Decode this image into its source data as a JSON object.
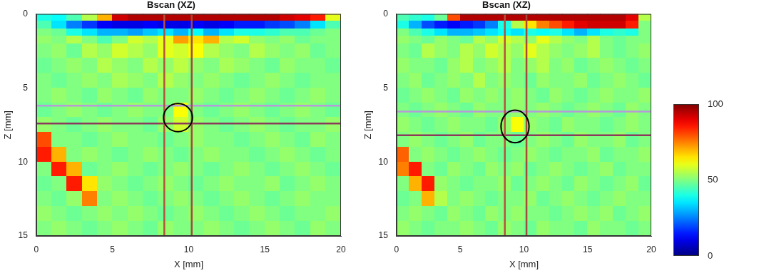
{
  "chart_data": [
    {
      "type": "heatmap",
      "title": "Bscan (XZ)",
      "x_label": "X [mm]",
      "y_label": "Z [mm]",
      "xlim": [
        0,
        20
      ],
      "ylim": [
        15,
        0
      ],
      "xticks": [
        0,
        5,
        10,
        15,
        20
      ],
      "yticks": [
        0,
        5,
        10,
        15
      ],
      "x_edges": [
        0,
        1,
        2,
        3,
        4,
        5,
        6,
        7,
        8,
        9,
        10,
        11,
        12,
        13,
        14,
        15,
        16,
        17,
        18,
        19,
        20
      ],
      "z_edges": [
        0,
        0.5,
        1,
        1.5,
        2,
        3,
        4,
        5,
        6,
        7,
        8,
        9,
        10,
        11,
        12,
        13,
        14,
        15
      ],
      "cells": [
        [
          40,
          38,
          45,
          55,
          70,
          92,
          95,
          95,
          95,
          95,
          95,
          95,
          95,
          95,
          95,
          95,
          92,
          90,
          85,
          60
        ],
        [
          45,
          35,
          25,
          18,
          12,
          10,
          10,
          12,
          10,
          10,
          12,
          10,
          12,
          15,
          15,
          18,
          20,
          25,
          35,
          45
        ],
        [
          50,
          48,
          40,
          35,
          30,
          30,
          28,
          32,
          35,
          30,
          38,
          30,
          35,
          40,
          40,
          42,
          45,
          45,
          48,
          50
        ],
        [
          52,
          50,
          55,
          50,
          45,
          50,
          58,
          55,
          60,
          72,
          65,
          70,
          55,
          58,
          52,
          50,
          52,
          48,
          50,
          50
        ],
        [
          50,
          52,
          48,
          55,
          52,
          58,
          55,
          52,
          60,
          58,
          62,
          55,
          52,
          50,
          55,
          52,
          50,
          52,
          48,
          50
        ],
        [
          48,
          50,
          52,
          50,
          55,
          52,
          50,
          55,
          52,
          56,
          52,
          50,
          54,
          52,
          50,
          48,
          52,
          50,
          50,
          48
        ],
        [
          50,
          48,
          50,
          52,
          50,
          54,
          52,
          50,
          55,
          52,
          50,
          52,
          50,
          48,
          50,
          52,
          50,
          48,
          50,
          50
        ],
        [
          50,
          52,
          50,
          48,
          52,
          50,
          48,
          52,
          50,
          50,
          52,
          50,
          48,
          50,
          52,
          50,
          48,
          50,
          52,
          50
        ],
        [
          48,
          50,
          52,
          50,
          48,
          50,
          52,
          50,
          50,
          62,
          50,
          48,
          50,
          52,
          50,
          48,
          50,
          52,
          50,
          48
        ],
        [
          52,
          50,
          48,
          50,
          52,
          50,
          50,
          48,
          52,
          58,
          52,
          50,
          48,
          50,
          52,
          50,
          48,
          50,
          50,
          52
        ],
        [
          80,
          50,
          50,
          48,
          50,
          52,
          50,
          50,
          48,
          50,
          52,
          50,
          50,
          48,
          50,
          52,
          50,
          48,
          52,
          50
        ],
        [
          85,
          70,
          50,
          52,
          50,
          48,
          50,
          52,
          50,
          48,
          50,
          52,
          50,
          50,
          48,
          50,
          52,
          50,
          48,
          50
        ],
        [
          50,
          85,
          70,
          48,
          50,
          52,
          50,
          48,
          50,
          52,
          50,
          48,
          50,
          52,
          50,
          48,
          50,
          52,
          50,
          48
        ],
        [
          48,
          50,
          85,
          65,
          52,
          50,
          48,
          50,
          52,
          50,
          48,
          50,
          52,
          50,
          50,
          52,
          48,
          50,
          52,
          50
        ],
        [
          50,
          48,
          52,
          75,
          50,
          52,
          50,
          48,
          50,
          52,
          50,
          48,
          50,
          52,
          50,
          48,
          50,
          52,
          50,
          50
        ],
        [
          52,
          50,
          48,
          50,
          52,
          50,
          52,
          50,
          48,
          50,
          52,
          50,
          48,
          50,
          52,
          50,
          48,
          50,
          50,
          52
        ],
        [
          50,
          52,
          50,
          48,
          50,
          52,
          50,
          48,
          52,
          50,
          50,
          52,
          50,
          48,
          50,
          52,
          50,
          48,
          52,
          50
        ]
      ],
      "cursors": {
        "x": [
          8.4,
          10.2
        ],
        "z": [
          6.2,
          7.4
        ]
      },
      "circle": {
        "x": 9.3,
        "z": 7.0,
        "r": 0.95
      }
    },
    {
      "type": "heatmap",
      "title": "Bscan (XZ)",
      "x_label": "X [mm]",
      "y_label": "Z [mm]",
      "xlim": [
        0,
        20
      ],
      "ylim": [
        15,
        0
      ],
      "xticks": [
        0,
        5,
        10,
        15,
        20
      ],
      "yticks": [
        0,
        5,
        10,
        15
      ],
      "x_edges": [
        0,
        1,
        2,
        3,
        4,
        5,
        6,
        7,
        8,
        9,
        10,
        11,
        12,
        13,
        14,
        15,
        16,
        17,
        18,
        19,
        20
      ],
      "z_edges": [
        0,
        0.5,
        1,
        1.5,
        2,
        3,
        4,
        5,
        6,
        7,
        8,
        9,
        10,
        11,
        12,
        13,
        14,
        15
      ],
      "cells": [
        [
          45,
          42,
          40,
          48,
          80,
          95,
          95,
          95,
          95,
          95,
          95,
          95,
          95,
          95,
          95,
          95,
          95,
          95,
          90,
          55
        ],
        [
          40,
          30,
          20,
          15,
          12,
          15,
          18,
          25,
          40,
          55,
          65,
          75,
          80,
          85,
          90,
          92,
          92,
          92,
          85,
          50
        ],
        [
          50,
          45,
          40,
          35,
          30,
          30,
          32,
          35,
          38,
          35,
          40,
          38,
          40,
          35,
          30,
          35,
          40,
          42,
          40,
          50
        ],
        [
          52,
          50,
          48,
          52,
          50,
          48,
          55,
          52,
          58,
          55,
          52,
          60,
          55,
          52,
          50,
          55,
          50,
          48,
          50,
          50
        ],
        [
          50,
          48,
          55,
          52,
          50,
          55,
          52,
          58,
          55,
          52,
          60,
          55,
          52,
          50,
          52,
          55,
          50,
          48,
          50,
          52
        ],
        [
          52,
          50,
          50,
          48,
          52,
          55,
          50,
          52,
          55,
          50,
          52,
          55,
          50,
          52,
          48,
          50,
          52,
          50,
          48,
          50
        ],
        [
          50,
          52,
          48,
          50,
          52,
          50,
          55,
          50,
          52,
          50,
          48,
          52,
          50,
          50,
          52,
          48,
          50,
          52,
          50,
          48
        ],
        [
          48,
          50,
          52,
          50,
          48,
          52,
          50,
          52,
          50,
          52,
          50,
          48,
          52,
          50,
          48,
          50,
          52,
          50,
          50,
          52
        ],
        [
          50,
          48,
          50,
          52,
          50,
          48,
          52,
          50,
          50,
          52,
          50,
          52,
          50,
          48,
          50,
          52,
          50,
          48,
          52,
          50
        ],
        [
          52,
          50,
          48,
          50,
          52,
          50,
          50,
          48,
          52,
          62,
          52,
          50,
          48,
          52,
          50,
          50,
          48,
          50,
          52,
          50
        ],
        [
          50,
          52,
          50,
          48,
          50,
          52,
          48,
          50,
          50,
          48,
          50,
          52,
          50,
          48,
          52,
          50,
          50,
          52,
          48,
          50
        ],
        [
          78,
          50,
          52,
          50,
          48,
          50,
          52,
          50,
          48,
          50,
          52,
          50,
          48,
          50,
          50,
          52,
          48,
          50,
          50,
          52
        ],
        [
          75,
          85,
          50,
          48,
          52,
          50,
          48,
          52,
          50,
          52,
          48,
          50,
          52,
          50,
          48,
          50,
          52,
          48,
          50,
          50
        ],
        [
          50,
          70,
          85,
          52,
          50,
          48,
          50,
          50,
          52,
          48,
          50,
          52,
          50,
          48,
          52,
          50,
          48,
          50,
          52,
          48
        ],
        [
          48,
          50,
          70,
          55,
          50,
          52,
          50,
          48,
          50,
          50,
          52,
          48,
          50,
          52,
          50,
          48,
          50,
          52,
          50,
          50
        ],
        [
          50,
          52,
          50,
          48,
          52,
          50,
          48,
          52,
          50,
          52,
          50,
          50,
          48,
          50,
          52,
          50,
          52,
          48,
          50,
          52
        ],
        [
          52,
          50,
          48,
          50,
          50,
          52,
          50,
          48,
          52,
          50,
          48,
          52,
          50,
          50,
          48,
          52,
          50,
          50,
          48,
          50
        ]
      ],
      "cursors": {
        "x": [
          8.5,
          10.2
        ],
        "z": [
          6.6,
          8.2
        ]
      },
      "circle": {
        "x": 9.3,
        "z": 7.6,
        "r": 1.1
      },
      "colorbar": {
        "range": [
          0,
          100
        ],
        "ticks": [
          0,
          50,
          100
        ]
      }
    }
  ]
}
